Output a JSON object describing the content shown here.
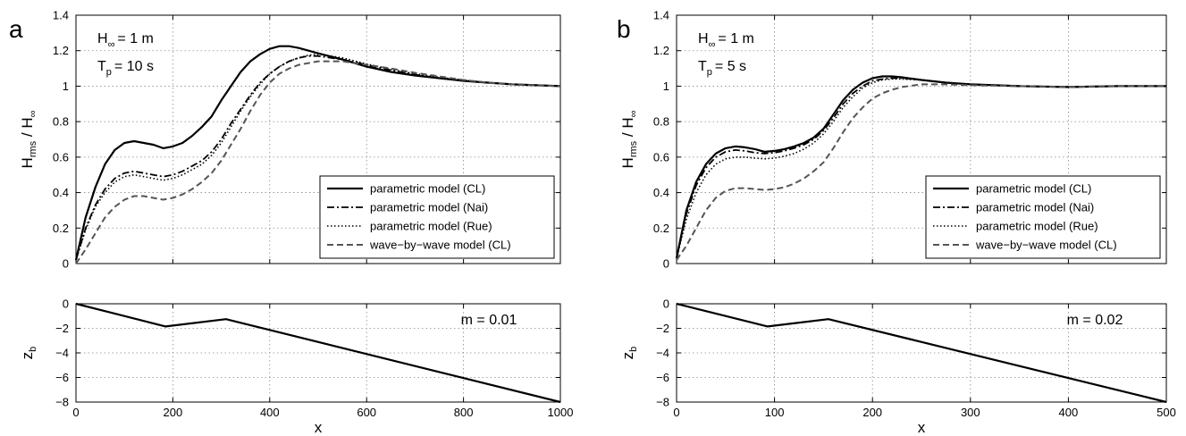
{
  "panels": [
    {
      "panel_label": "a",
      "annotations": {
        "H_main": "H",
        "H_sub": "∞",
        "H_tail": "= 1 m",
        "T_main": "T",
        "T_sub": "p",
        "T_tail": "= 10 s",
        "slope_text": "m = 0.01"
      },
      "chart_data": [
        {
          "type": "line",
          "ylabel_main": "H",
          "ylabel_sub": "rms",
          "ylabel_mid": " / H",
          "ylabel_sub2": "∞",
          "xlim": [
            0,
            1000
          ],
          "ylim": [
            0,
            1.4
          ],
          "xticks": [
            0,
            200,
            400,
            600,
            800,
            1000
          ],
          "yticks": [
            0,
            0.2,
            0.4,
            0.6,
            0.8,
            1,
            1.2,
            1.4
          ],
          "ytick_labels": [
            "0",
            "0.2",
            "0.4",
            "0.6",
            "0.8",
            "1",
            "1.2",
            "1.4"
          ],
          "grid": true,
          "legend_position": "lower-right",
          "series": [
            {
              "name": "parametric model (CL)",
              "style": "solid",
              "x": [
                0,
                20,
                40,
                60,
                80,
                100,
                120,
                140,
                160,
                180,
                200,
                220,
                240,
                260,
                280,
                300,
                320,
                340,
                360,
                380,
                400,
                420,
                440,
                460,
                480,
                500,
                550,
                600,
                650,
                700,
                750,
                800,
                850,
                900,
                950,
                1000
              ],
              "y": [
                0.02,
                0.26,
                0.43,
                0.56,
                0.64,
                0.68,
                0.69,
                0.68,
                0.67,
                0.65,
                0.66,
                0.68,
                0.72,
                0.77,
                0.83,
                0.92,
                1.0,
                1.08,
                1.14,
                1.18,
                1.21,
                1.225,
                1.225,
                1.215,
                1.2,
                1.185,
                1.15,
                1.11,
                1.08,
                1.06,
                1.045,
                1.03,
                1.02,
                1.01,
                1.005,
                1.0
              ]
            },
            {
              "name": "parametric model (Nai)",
              "style": "dashdot",
              "x": [
                0,
                20,
                40,
                60,
                80,
                100,
                120,
                140,
                160,
                180,
                200,
                220,
                240,
                260,
                280,
                300,
                320,
                340,
                360,
                380,
                400,
                420,
                440,
                460,
                480,
                500,
                550,
                600,
                650,
                700,
                750,
                800,
                850,
                900,
                950,
                1000
              ],
              "y": [
                0.02,
                0.2,
                0.33,
                0.42,
                0.48,
                0.51,
                0.52,
                0.51,
                0.5,
                0.49,
                0.5,
                0.52,
                0.55,
                0.58,
                0.63,
                0.7,
                0.79,
                0.87,
                0.95,
                1.02,
                1.07,
                1.11,
                1.14,
                1.16,
                1.17,
                1.17,
                1.15,
                1.12,
                1.09,
                1.065,
                1.045,
                1.03,
                1.02,
                1.01,
                1.005,
                1.0
              ]
            },
            {
              "name": "parametric model (Rue)",
              "style": "dotted",
              "x": [
                0,
                20,
                40,
                60,
                80,
                100,
                120,
                140,
                160,
                180,
                200,
                220,
                240,
                260,
                280,
                300,
                320,
                340,
                360,
                380,
                400,
                420,
                440,
                460,
                480,
                500,
                550,
                600,
                650,
                700,
                750,
                800,
                850,
                900,
                950,
                1000
              ],
              "y": [
                0.02,
                0.19,
                0.32,
                0.4,
                0.46,
                0.49,
                0.5,
                0.49,
                0.48,
                0.47,
                0.48,
                0.5,
                0.53,
                0.56,
                0.61,
                0.68,
                0.77,
                0.86,
                0.94,
                1.01,
                1.07,
                1.11,
                1.14,
                1.16,
                1.175,
                1.18,
                1.16,
                1.125,
                1.095,
                1.07,
                1.05,
                1.035,
                1.02,
                1.01,
                1.005,
                1.0
              ]
            },
            {
              "name": "wave−by−wave model (CL)",
              "style": "dashed",
              "x": [
                0,
                20,
                40,
                60,
                80,
                100,
                120,
                140,
                160,
                180,
                200,
                220,
                240,
                260,
                280,
                300,
                320,
                340,
                360,
                380,
                400,
                420,
                440,
                460,
                480,
                500,
                550,
                600,
                650,
                700,
                750,
                800,
                850,
                900,
                950,
                1000
              ],
              "y": [
                0.0,
                0.08,
                0.17,
                0.26,
                0.32,
                0.36,
                0.38,
                0.38,
                0.37,
                0.36,
                0.37,
                0.39,
                0.42,
                0.46,
                0.51,
                0.58,
                0.67,
                0.76,
                0.86,
                0.95,
                1.02,
                1.07,
                1.1,
                1.12,
                1.13,
                1.14,
                1.14,
                1.12,
                1.1,
                1.075,
                1.055,
                1.035,
                1.02,
                1.01,
                1.005,
                1.0
              ]
            }
          ]
        },
        {
          "type": "line",
          "ylabel_main": "z",
          "ylabel_sub": "b",
          "xlabel": "x",
          "xlim": [
            0,
            1000
          ],
          "ylim": [
            -8,
            0
          ],
          "xticks": [
            0,
            200,
            400,
            600,
            800,
            1000
          ],
          "yticks": [
            -8,
            -6,
            -4,
            -2,
            0
          ],
          "grid": true,
          "series": [
            {
              "style": "solid",
              "x": [
                0,
                185,
                310,
                1000
              ],
              "y": [
                0,
                -1.85,
                -1.25,
                -8
              ]
            }
          ]
        }
      ]
    },
    {
      "panel_label": "b",
      "annotations": {
        "H_main": "H",
        "H_sub": "∞",
        "H_tail": "= 1 m",
        "T_main": "T",
        "T_sub": "p",
        "T_tail": "= 5 s",
        "slope_text": "m = 0.02"
      },
      "chart_data": [
        {
          "type": "line",
          "ylabel_main": "H",
          "ylabel_sub": "rms",
          "ylabel_mid": " / H",
          "ylabel_sub2": "∞",
          "xlim": [
            0,
            500
          ],
          "ylim": [
            0,
            1.4
          ],
          "xticks": [
            0,
            100,
            200,
            300,
            400,
            500
          ],
          "yticks": [
            0,
            0.2,
            0.4,
            0.6,
            0.8,
            1,
            1.2,
            1.4
          ],
          "ytick_labels": [
            "0",
            "0.2",
            "0.4",
            "0.6",
            "0.8",
            "1",
            "1.2",
            "1.4"
          ],
          "grid": true,
          "legend_position": "lower-right",
          "series": [
            {
              "name": "parametric model (CL)",
              "style": "solid",
              "x": [
                0,
                10,
                20,
                30,
                40,
                50,
                60,
                70,
                80,
                90,
                100,
                110,
                120,
                130,
                140,
                150,
                160,
                170,
                180,
                190,
                200,
                210,
                220,
                230,
                250,
                275,
                300,
                350,
                400,
                450,
                500
              ],
              "y": [
                0.03,
                0.3,
                0.46,
                0.56,
                0.62,
                0.65,
                0.66,
                0.655,
                0.645,
                0.63,
                0.635,
                0.645,
                0.66,
                0.68,
                0.71,
                0.76,
                0.84,
                0.92,
                0.98,
                1.02,
                1.045,
                1.055,
                1.055,
                1.05,
                1.035,
                1.02,
                1.01,
                1.0,
                0.995,
                1.0,
                1.0
              ]
            },
            {
              "name": "parametric model (Nai)",
              "style": "dashdot",
              "x": [
                0,
                10,
                20,
                30,
                40,
                50,
                60,
                70,
                80,
                90,
                100,
                110,
                120,
                130,
                140,
                150,
                160,
                170,
                180,
                190,
                200,
                210,
                220,
                230,
                250,
                275,
                300,
                350,
                400,
                450,
                500
              ],
              "y": [
                0.03,
                0.28,
                0.44,
                0.54,
                0.6,
                0.63,
                0.64,
                0.635,
                0.625,
                0.62,
                0.625,
                0.635,
                0.65,
                0.67,
                0.7,
                0.75,
                0.82,
                0.9,
                0.96,
                1.0,
                1.03,
                1.04,
                1.045,
                1.045,
                1.035,
                1.02,
                1.01,
                1.0,
                0.995,
                1.0,
                1.0
              ]
            },
            {
              "name": "parametric model (Rue)",
              "style": "dotted",
              "x": [
                0,
                10,
                20,
                30,
                40,
                50,
                60,
                70,
                80,
                90,
                100,
                110,
                120,
                130,
                140,
                150,
                160,
                170,
                180,
                190,
                200,
                210,
                220,
                230,
                250,
                275,
                300,
                350,
                400,
                450,
                500
              ],
              "y": [
                0.03,
                0.25,
                0.4,
                0.5,
                0.56,
                0.59,
                0.6,
                0.6,
                0.595,
                0.59,
                0.595,
                0.605,
                0.62,
                0.645,
                0.68,
                0.73,
                0.8,
                0.88,
                0.94,
                0.99,
                1.02,
                1.035,
                1.04,
                1.04,
                1.035,
                1.02,
                1.01,
                1.0,
                0.995,
                1.0,
                1.0
              ]
            },
            {
              "name": "wave−by−wave model (CL)",
              "style": "dashed",
              "x": [
                0,
                10,
                20,
                30,
                40,
                50,
                60,
                70,
                80,
                90,
                100,
                110,
                120,
                130,
                140,
                150,
                160,
                170,
                180,
                190,
                200,
                210,
                220,
                230,
                250,
                275,
                300,
                350,
                400,
                450,
                500
              ],
              "y": [
                0.02,
                0.1,
                0.2,
                0.3,
                0.37,
                0.41,
                0.425,
                0.425,
                0.42,
                0.415,
                0.42,
                0.43,
                0.45,
                0.48,
                0.52,
                0.57,
                0.65,
                0.74,
                0.82,
                0.88,
                0.93,
                0.96,
                0.98,
                0.995,
                1.01,
                1.01,
                1.005,
                1.0,
                0.995,
                1.0,
                1.0
              ]
            }
          ]
        },
        {
          "type": "line",
          "ylabel_main": "z",
          "ylabel_sub": "b",
          "xlabel": "x",
          "xlim": [
            0,
            500
          ],
          "ylim": [
            -8,
            0
          ],
          "xticks": [
            0,
            100,
            200,
            300,
            400,
            500
          ],
          "yticks": [
            -8,
            -6,
            -4,
            -2,
            0
          ],
          "grid": true,
          "series": [
            {
              "style": "solid",
              "x": [
                0,
                93,
                155,
                500
              ],
              "y": [
                0,
                -1.85,
                -1.25,
                -8
              ]
            }
          ]
        }
      ]
    }
  ]
}
